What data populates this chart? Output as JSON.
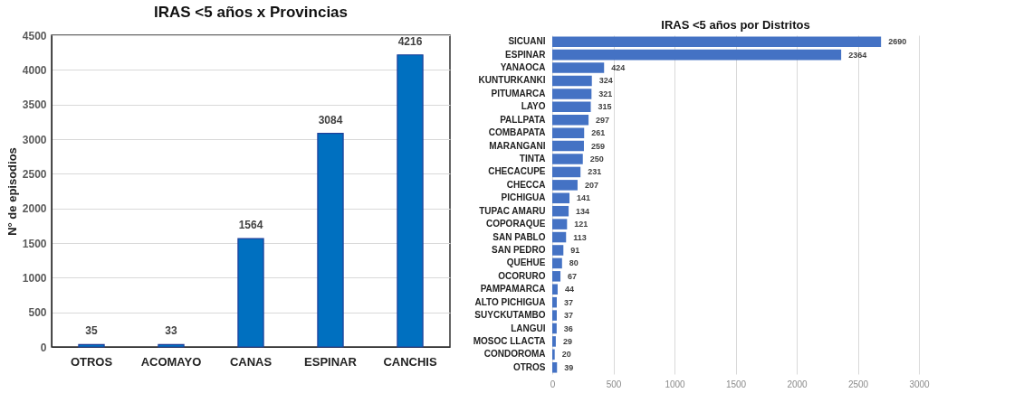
{
  "chart_data": [
    {
      "type": "bar",
      "title": "IRAS <5 años x Provincias",
      "ylabel": "N° de episodios",
      "categories": [
        "OTROS",
        "ACOMAYO",
        "CANAS",
        "ESPINAR",
        "CANCHIS"
      ],
      "values": [
        35,
        33,
        1564,
        3084,
        4216
      ],
      "color": "#0070c0",
      "ylim": [
        0,
        4500
      ],
      "yticks": [
        0,
        500,
        1000,
        1500,
        2000,
        2500,
        3000,
        3500,
        4000,
        4500
      ],
      "grid": "y",
      "data_labels": true
    },
    {
      "type": "bar",
      "orientation": "horizontal",
      "title": "IRAS <5 años por Distritos",
      "categories": [
        "SICUANI",
        "ESPINAR",
        "YANAOCA",
        "KUNTURKANKI",
        "PITUMARCA",
        "LAYO",
        "PALLPATA",
        "COMBAPATA",
        "MARANGANI",
        "TINTA",
        "CHECACUPE",
        "CHECCA",
        "PICHIGUA",
        "TUPAC AMARU",
        "COPORAQUE",
        "SAN PABLO",
        "SAN PEDRO",
        "QUEHUE",
        "OCORURO",
        "PAMPAMARCA",
        "ALTO PICHIGUA",
        "SUYCKUTAMBO",
        "LANGUI",
        "MOSOC LLACTA",
        "CONDOROMA",
        "OTROS"
      ],
      "values": [
        2690,
        2364,
        424,
        324,
        321,
        315,
        297,
        261,
        259,
        250,
        231,
        207,
        141,
        134,
        121,
        113,
        91,
        80,
        67,
        44,
        37,
        37,
        36,
        29,
        20,
        39
      ],
      "color": "#4472c4",
      "xlim": [
        0,
        3000
      ],
      "xticks": [
        0,
        500,
        1000,
        1500,
        2000,
        2500,
        3000
      ],
      "grid": "x",
      "data_labels": true
    }
  ]
}
